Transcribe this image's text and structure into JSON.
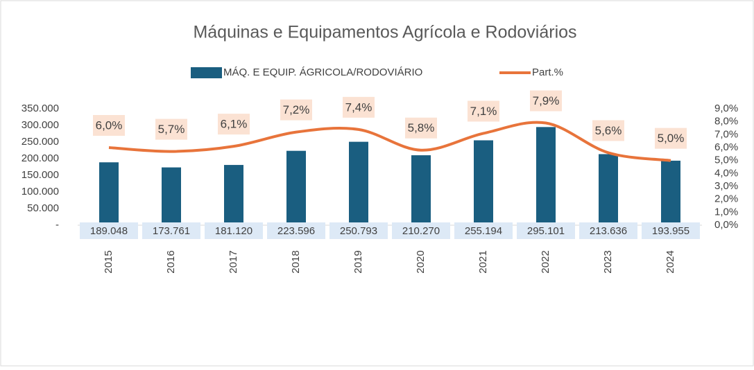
{
  "chart_data": {
    "type": "bar-line",
    "title": "Máquinas e Equipamentos Agrícola e Rodoviários",
    "categories": [
      "2015",
      "2016",
      "2017",
      "2018",
      "2019",
      "2020",
      "2021",
      "2022",
      "2023",
      "2024"
    ],
    "series": [
      {
        "name": "MÁQ. E EQUIP. ÁGRICOLA/RODOVIÁRIO",
        "type": "bar",
        "color": "#1a5e80",
        "values": [
          189048,
          173761,
          181120,
          223596,
          250793,
          210270,
          255194,
          295101,
          213636,
          193955
        ],
        "value_labels": [
          "189.048",
          "173.761",
          "181.120",
          "223.596",
          "250.793",
          "210.270",
          "255.194",
          "295.101",
          "213.636",
          "193.955"
        ]
      },
      {
        "name": "Part.%",
        "type": "line",
        "axis": "y2",
        "color": "#e8743b",
        "values": [
          6.0,
          5.7,
          6.1,
          7.2,
          7.4,
          5.8,
          7.1,
          7.9,
          5.6,
          5.0
        ],
        "value_labels": [
          "6,0%",
          "5,7%",
          "6,1%",
          "7,2%",
          "7,4%",
          "5,8%",
          "7,1%",
          "7,9%",
          "5,6%",
          "5,0%"
        ]
      }
    ],
    "ylim": [
      0,
      350000
    ],
    "yticks": [
      {
        "value": 0,
        "label": "-"
      },
      {
        "value": 50000,
        "label": "50.000"
      },
      {
        "value": 100000,
        "label": "100.000"
      },
      {
        "value": 150000,
        "label": "150.000"
      },
      {
        "value": 200000,
        "label": "200.000"
      },
      {
        "value": 250000,
        "label": "250.000"
      },
      {
        "value": 300000,
        "label": "300.000"
      },
      {
        "value": 350000,
        "label": "350.000"
      }
    ],
    "y2lim": [
      0,
      9
    ],
    "y2ticks": [
      {
        "value": 0,
        "label": "0,0%"
      },
      {
        "value": 1,
        "label": "1,0%"
      },
      {
        "value": 2,
        "label": "2,0%"
      },
      {
        "value": 3,
        "label": "3,0%"
      },
      {
        "value": 4,
        "label": "4,0%"
      },
      {
        "value": 5,
        "label": "5,0%"
      },
      {
        "value": 6,
        "label": "6,0%"
      },
      {
        "value": 7,
        "label": "7,0%"
      },
      {
        "value": 8,
        "label": "8,0%"
      },
      {
        "value": 9,
        "label": "9,0%"
      }
    ],
    "legend": "top"
  }
}
